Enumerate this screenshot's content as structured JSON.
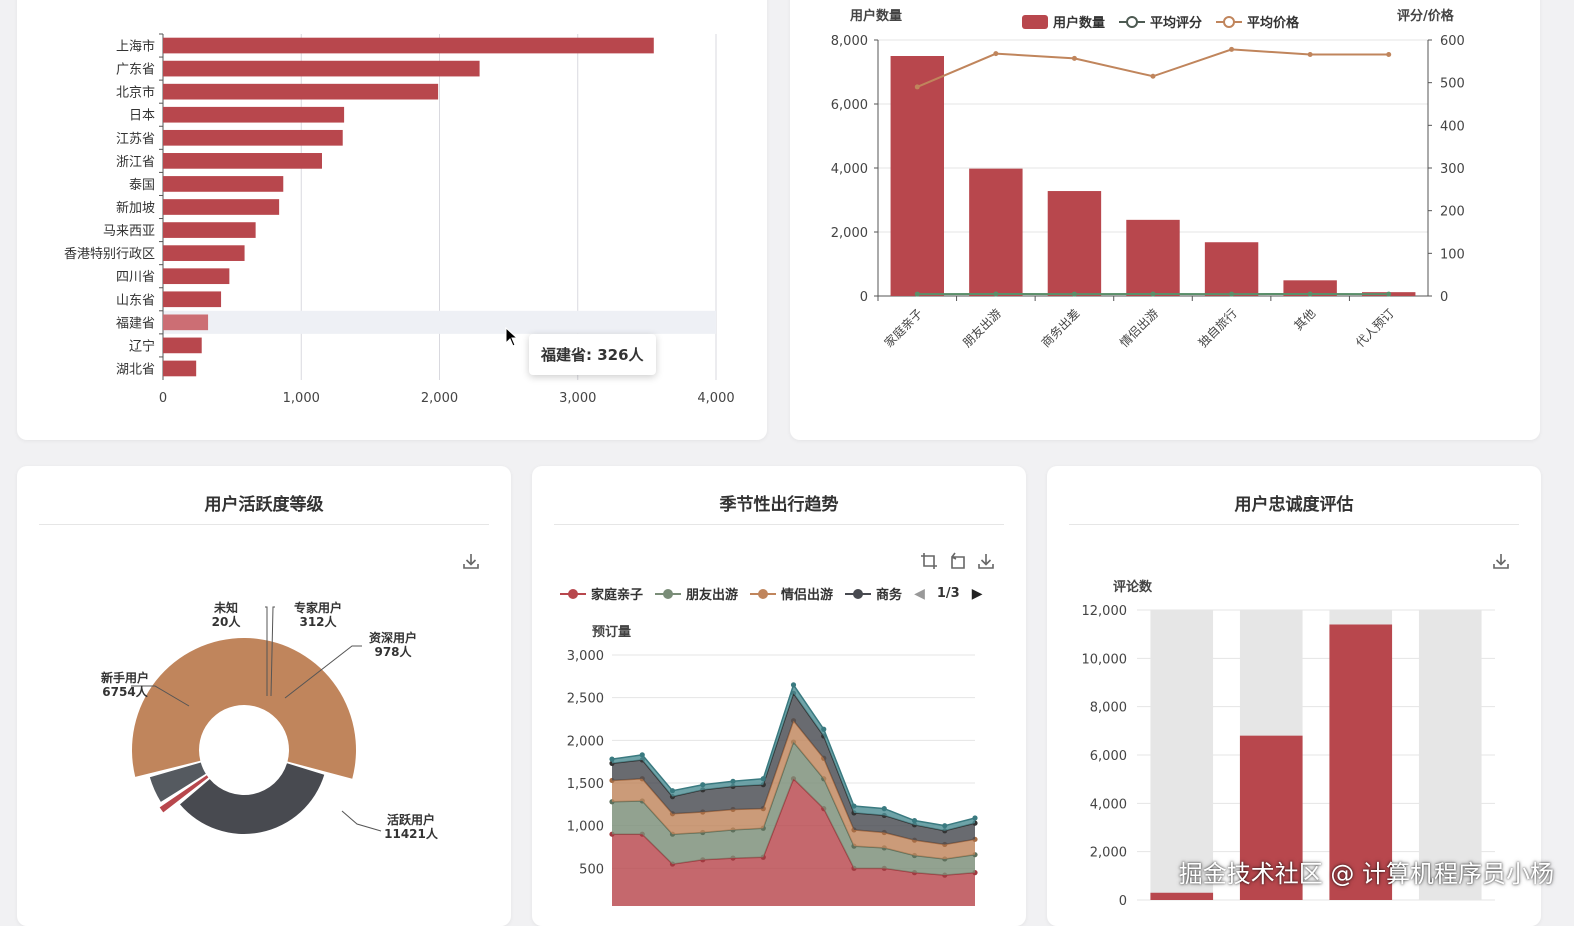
{
  "colors": {
    "red": "#b8474d",
    "red_highlight": "#cc6e74",
    "brown": "#c0855c",
    "gray": "#7a8d78",
    "dark": "#484a50",
    "teal": "#4e8f95",
    "grid": "#e4e4e4",
    "axis": "#555555",
    "band": "#e6e6e6"
  },
  "province_chart": {
    "tooltip": "福建省: 326人",
    "highlight_index": 12
  },
  "travel_chart": {
    "ylabel_left": "用户数量",
    "ylabel_right": "评分/价格",
    "legend": [
      "用户数量",
      "平均评分",
      "平均价格"
    ]
  },
  "activity_panel": {
    "title": "用户活跃度等级",
    "download_icon": "download-icon"
  },
  "season_panel": {
    "title": "季节性出行趋势",
    "legend": [
      "家庭亲子",
      "朋友出游",
      "情侣出游",
      "商务"
    ],
    "page": "1/3",
    "ylabel": "预订量",
    "icons": [
      "zoom-icon",
      "restore-icon",
      "download-icon"
    ]
  },
  "loyalty_panel": {
    "title": "用户忠诚度评估",
    "ylabel": "评论数",
    "download_icon": "download-icon"
  },
  "watermark": "掘金技术社区 @ 计算机程序员小杨",
  "chart_data": [
    {
      "type": "bar",
      "orientation": "horizontal",
      "categories": [
        "上海市",
        "广东省",
        "北京市",
        "日本",
        "江苏省",
        "浙江省",
        "泰国",
        "新加坡",
        "马来西亚",
        "香港特别行政区",
        "四川省",
        "山东省",
        "福建省",
        "辽宁",
        "湖北省"
      ],
      "values": [
        3550,
        2290,
        1990,
        1310,
        1300,
        1150,
        870,
        840,
        670,
        590,
        480,
        420,
        326,
        280,
        240
      ],
      "xlim": [
        0,
        4000
      ],
      "xticks": [
        "0",
        "1,000",
        "2,000",
        "3,000",
        "4,000"
      ],
      "grid": true
    },
    {
      "type": "bar",
      "categories": [
        "家庭亲子",
        "朋友出游",
        "商务出差",
        "情侣出游",
        "独自旅行",
        "其他",
        "代人预订"
      ],
      "series": [
        {
          "name": "用户数量",
          "type": "bar",
          "axis": "left",
          "values": [
            7500,
            3980,
            3280,
            2380,
            1680,
            490,
            120
          ]
        },
        {
          "name": "平均评分",
          "type": "line",
          "axis": "right",
          "values": [
            4.5,
            4.6,
            4.5,
            4.6,
            4.5,
            4.6,
            4.5
          ]
        },
        {
          "name": "平均价格",
          "type": "line",
          "axis": "right",
          "values": [
            490,
            568,
            557,
            515,
            578,
            566,
            566
          ]
        }
      ],
      "ylim_left": [
        0,
        8000
      ],
      "yticks_left": [
        "0",
        "2,000",
        "4,000",
        "6,000",
        "8,000"
      ],
      "ylim_right": [
        0,
        600
      ],
      "yticks_right": [
        "0",
        "100",
        "200",
        "300",
        "400",
        "500",
        "600"
      ],
      "ylabel_left": "用户数量",
      "ylabel_right": "评分/价格",
      "legend_position": "top"
    },
    {
      "type": "pie",
      "title": "用户活跃度等级",
      "slices": [
        {
          "name": "活跃用户",
          "value": 11421,
          "label": "活跃用户\n11421人"
        },
        {
          "name": "新手用户",
          "value": 6754,
          "label": "新手用户\n6754人"
        },
        {
          "name": "未知",
          "value": 20,
          "label": "未知\n20人"
        },
        {
          "name": "专家用户",
          "value": 312,
          "label": "专家用户\n312人"
        },
        {
          "name": "资深用户",
          "value": 978,
          "label": "资深用户\n978人"
        }
      ]
    },
    {
      "type": "area",
      "title": "季节性出行趋势",
      "stacked": true,
      "ylabel": "预订量",
      "ylim": [
        0,
        3000
      ],
      "yticks": [
        "500",
        "1,000",
        "1,500",
        "2,000",
        "2,500",
        "3,000"
      ],
      "series": [
        {
          "name": "家庭亲子",
          "values": [
            900,
            900,
            550,
            600,
            620,
            630,
            1550,
            1200,
            500,
            500,
            450,
            420,
            450
          ]
        },
        {
          "name": "朋友出游",
          "values": [
            380,
            390,
            350,
            320,
            330,
            340,
            430,
            350,
            260,
            240,
            200,
            190,
            210
          ]
        },
        {
          "name": "情侣出游",
          "values": [
            250,
            260,
            240,
            240,
            240,
            230,
            250,
            240,
            190,
            180,
            180,
            170,
            180
          ]
        },
        {
          "name": "商务",
          "values": [
            200,
            220,
            200,
            260,
            270,
            280,
            320,
            260,
            200,
            200,
            180,
            160,
            190
          ]
        },
        {
          "name": "其他",
          "values": [
            50,
            60,
            70,
            60,
            60,
            70,
            100,
            80,
            80,
            80,
            50,
            60,
            60
          ]
        }
      ]
    },
    {
      "type": "bar",
      "title": "用户忠诚度评估",
      "ylabel": "评论数",
      "values": [
        300,
        6800,
        11400,
        0
      ],
      "background_max": 12000,
      "ylim": [
        0,
        12000
      ],
      "yticks": [
        "0",
        "2,000",
        "4,000",
        "6,000",
        "8,000",
        "10,000",
        "12,000"
      ]
    }
  ]
}
